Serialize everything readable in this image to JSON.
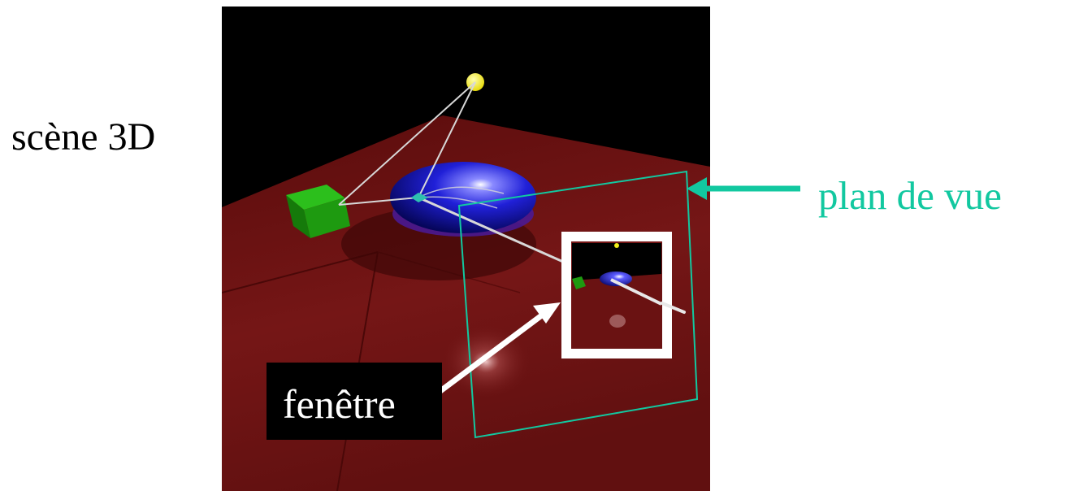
{
  "labels": {
    "scene": "scène 3D",
    "view_plane": "plan de vue",
    "window": "fenêtre"
  },
  "colors": {
    "background": "#ffffff",
    "sky": "#000000",
    "floor": "#6e1414",
    "teal": "#12c8a0",
    "light": "#f2ee1a",
    "cube": "#1e9a10",
    "ellipsoid": "#1a1acc",
    "window_frame": "#ffffff",
    "label_text": "#000000",
    "window_label_bg": "#000000",
    "window_label_text": "#ffffff"
  },
  "icons": {
    "light_source": "yellow-sphere",
    "cube": "green-cube",
    "ellipsoid": "blue-ellipsoid"
  }
}
